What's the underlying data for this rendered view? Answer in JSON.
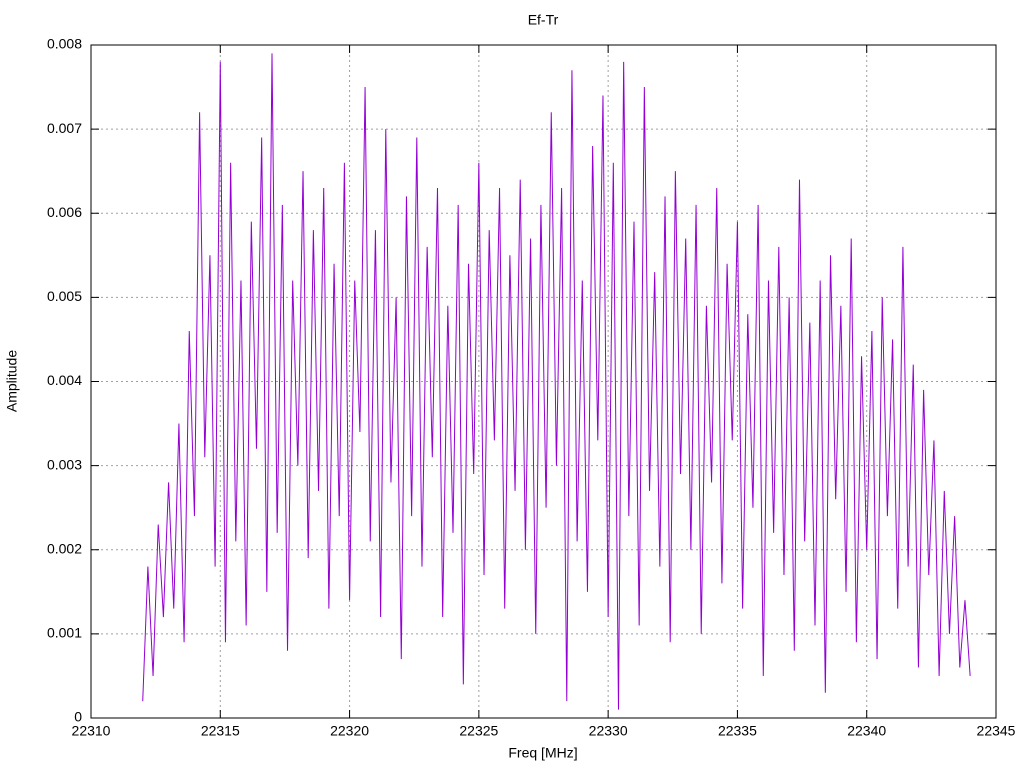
{
  "chart_data": {
    "type": "line",
    "title": "Ef-Tr",
    "xlabel": "Freq [MHz]",
    "ylabel": "Amplitude",
    "xlim": [
      22310,
      22345
    ],
    "xticks": [
      22310,
      22315,
      22320,
      22325,
      22330,
      22335,
      22340,
      22345
    ],
    "ylim": [
      0,
      0.008
    ],
    "yticks": [
      0,
      0.001,
      0.002,
      0.003,
      0.004,
      0.005,
      0.006,
      0.007,
      0.008
    ],
    "grid": true,
    "x": [
      22312,
      22312.2,
      22312.4,
      22312.6,
      22312.8,
      22313,
      22313.2,
      22313.4,
      22313.6,
      22313.8,
      22314,
      22314.2,
      22314.4,
      22314.6,
      22314.8,
      22315,
      22315.2,
      22315.4,
      22315.6,
      22315.8,
      22316,
      22316.2,
      22316.4,
      22316.6,
      22316.8,
      22317,
      22317.2,
      22317.4,
      22317.6,
      22317.8,
      22318,
      22318.2,
      22318.4,
      22318.6,
      22318.8,
      22319,
      22319.2,
      22319.4,
      22319.6,
      22319.8,
      22320,
      22320.2,
      22320.4,
      22320.6,
      22320.8,
      22321,
      22321.2,
      22321.4,
      22321.6,
      22321.8,
      22322,
      22322.2,
      22322.4,
      22322.6,
      22322.8,
      22323,
      22323.2,
      22323.4,
      22323.6,
      22323.8,
      22324,
      22324.2,
      22324.4,
      22324.6,
      22324.8,
      22325,
      22325.2,
      22325.4,
      22325.6,
      22325.8,
      22326,
      22326.2,
      22326.4,
      22326.6,
      22326.8,
      22327,
      22327.2,
      22327.4,
      22327.6,
      22327.8,
      22328,
      22328.2,
      22328.4,
      22328.6,
      22328.8,
      22329,
      22329.2,
      22329.4,
      22329.6,
      22329.8,
      22330,
      22330.2,
      22330.4,
      22330.6,
      22330.8,
      22331,
      22331.2,
      22331.4,
      22331.6,
      22331.8,
      22332,
      22332.2,
      22332.4,
      22332.6,
      22332.8,
      22333,
      22333.2,
      22333.4,
      22333.6,
      22333.8,
      22334,
      22334.2,
      22334.4,
      22334.6,
      22334.8,
      22335,
      22335.2,
      22335.4,
      22335.6,
      22335.8,
      22336,
      22336.2,
      22336.4,
      22336.6,
      22336.8,
      22337,
      22337.2,
      22337.4,
      22337.6,
      22337.8,
      22338,
      22338.2,
      22338.4,
      22338.6,
      22338.8,
      22339,
      22339.2,
      22339.4,
      22339.6,
      22339.8,
      22340,
      22340.2,
      22340.4,
      22340.6,
      22340.8,
      22341,
      22341.2,
      22341.4,
      22341.6,
      22341.8,
      22342,
      22342.2,
      22342.4,
      22342.6,
      22342.8,
      22343,
      22343.2,
      22343.4,
      22343.6,
      22343.8,
      22344
    ],
    "series": [
      {
        "color": "#9400d3",
        "values": [
          0.0002,
          0.0018,
          0.0005,
          0.0023,
          0.0012,
          0.0028,
          0.0013,
          0.0035,
          0.0009,
          0.0046,
          0.0024,
          0.0072,
          0.0031,
          0.0055,
          0.0018,
          0.0078,
          0.0009,
          0.0066,
          0.0021,
          0.0052,
          0.0011,
          0.0059,
          0.0032,
          0.0069,
          0.0015,
          0.0079,
          0.0022,
          0.0061,
          0.0008,
          0.0052,
          0.003,
          0.0065,
          0.0019,
          0.0058,
          0.0027,
          0.0063,
          0.0013,
          0.0054,
          0.0024,
          0.0066,
          0.0014,
          0.0052,
          0.0034,
          0.0075,
          0.0021,
          0.0058,
          0.0012,
          0.007,
          0.0028,
          0.005,
          0.0007,
          0.0062,
          0.0024,
          0.0069,
          0.0018,
          0.0056,
          0.0031,
          0.0063,
          0.0012,
          0.0049,
          0.0022,
          0.0061,
          0.0004,
          0.0054,
          0.0029,
          0.0066,
          0.0017,
          0.0058,
          0.0033,
          0.0063,
          0.0013,
          0.0055,
          0.0027,
          0.0064,
          0.002,
          0.0057,
          0.001,
          0.0061,
          0.0025,
          0.0072,
          0.003,
          0.0063,
          0.0002,
          0.0077,
          0.0021,
          0.0052,
          0.0015,
          0.0068,
          0.0033,
          0.0074,
          0.0012,
          0.0066,
          0.0001,
          0.0078,
          0.0024,
          0.0059,
          0.0011,
          0.0075,
          0.0027,
          0.0053,
          0.0018,
          0.0062,
          0.0009,
          0.0065,
          0.0029,
          0.0057,
          0.002,
          0.0061,
          0.001,
          0.0049,
          0.0028,
          0.0063,
          0.0016,
          0.0054,
          0.0033,
          0.0059,
          0.0013,
          0.0048,
          0.0025,
          0.0061,
          0.0005,
          0.0052,
          0.0022,
          0.0056,
          0.0017,
          0.005,
          0.0008,
          0.0064,
          0.0021,
          0.0047,
          0.0011,
          0.0052,
          0.0003,
          0.0055,
          0.0026,
          0.0049,
          0.0015,
          0.0057,
          0.0009,
          0.0043,
          0.002,
          0.0046,
          0.0007,
          0.005,
          0.0024,
          0.0045,
          0.0013,
          0.0056,
          0.0018,
          0.0042,
          0.0006,
          0.0039,
          0.0017,
          0.0033,
          0.0005,
          0.0027,
          0.001,
          0.0024,
          0.0006,
          0.0014,
          0.0005
        ]
      }
    ]
  }
}
